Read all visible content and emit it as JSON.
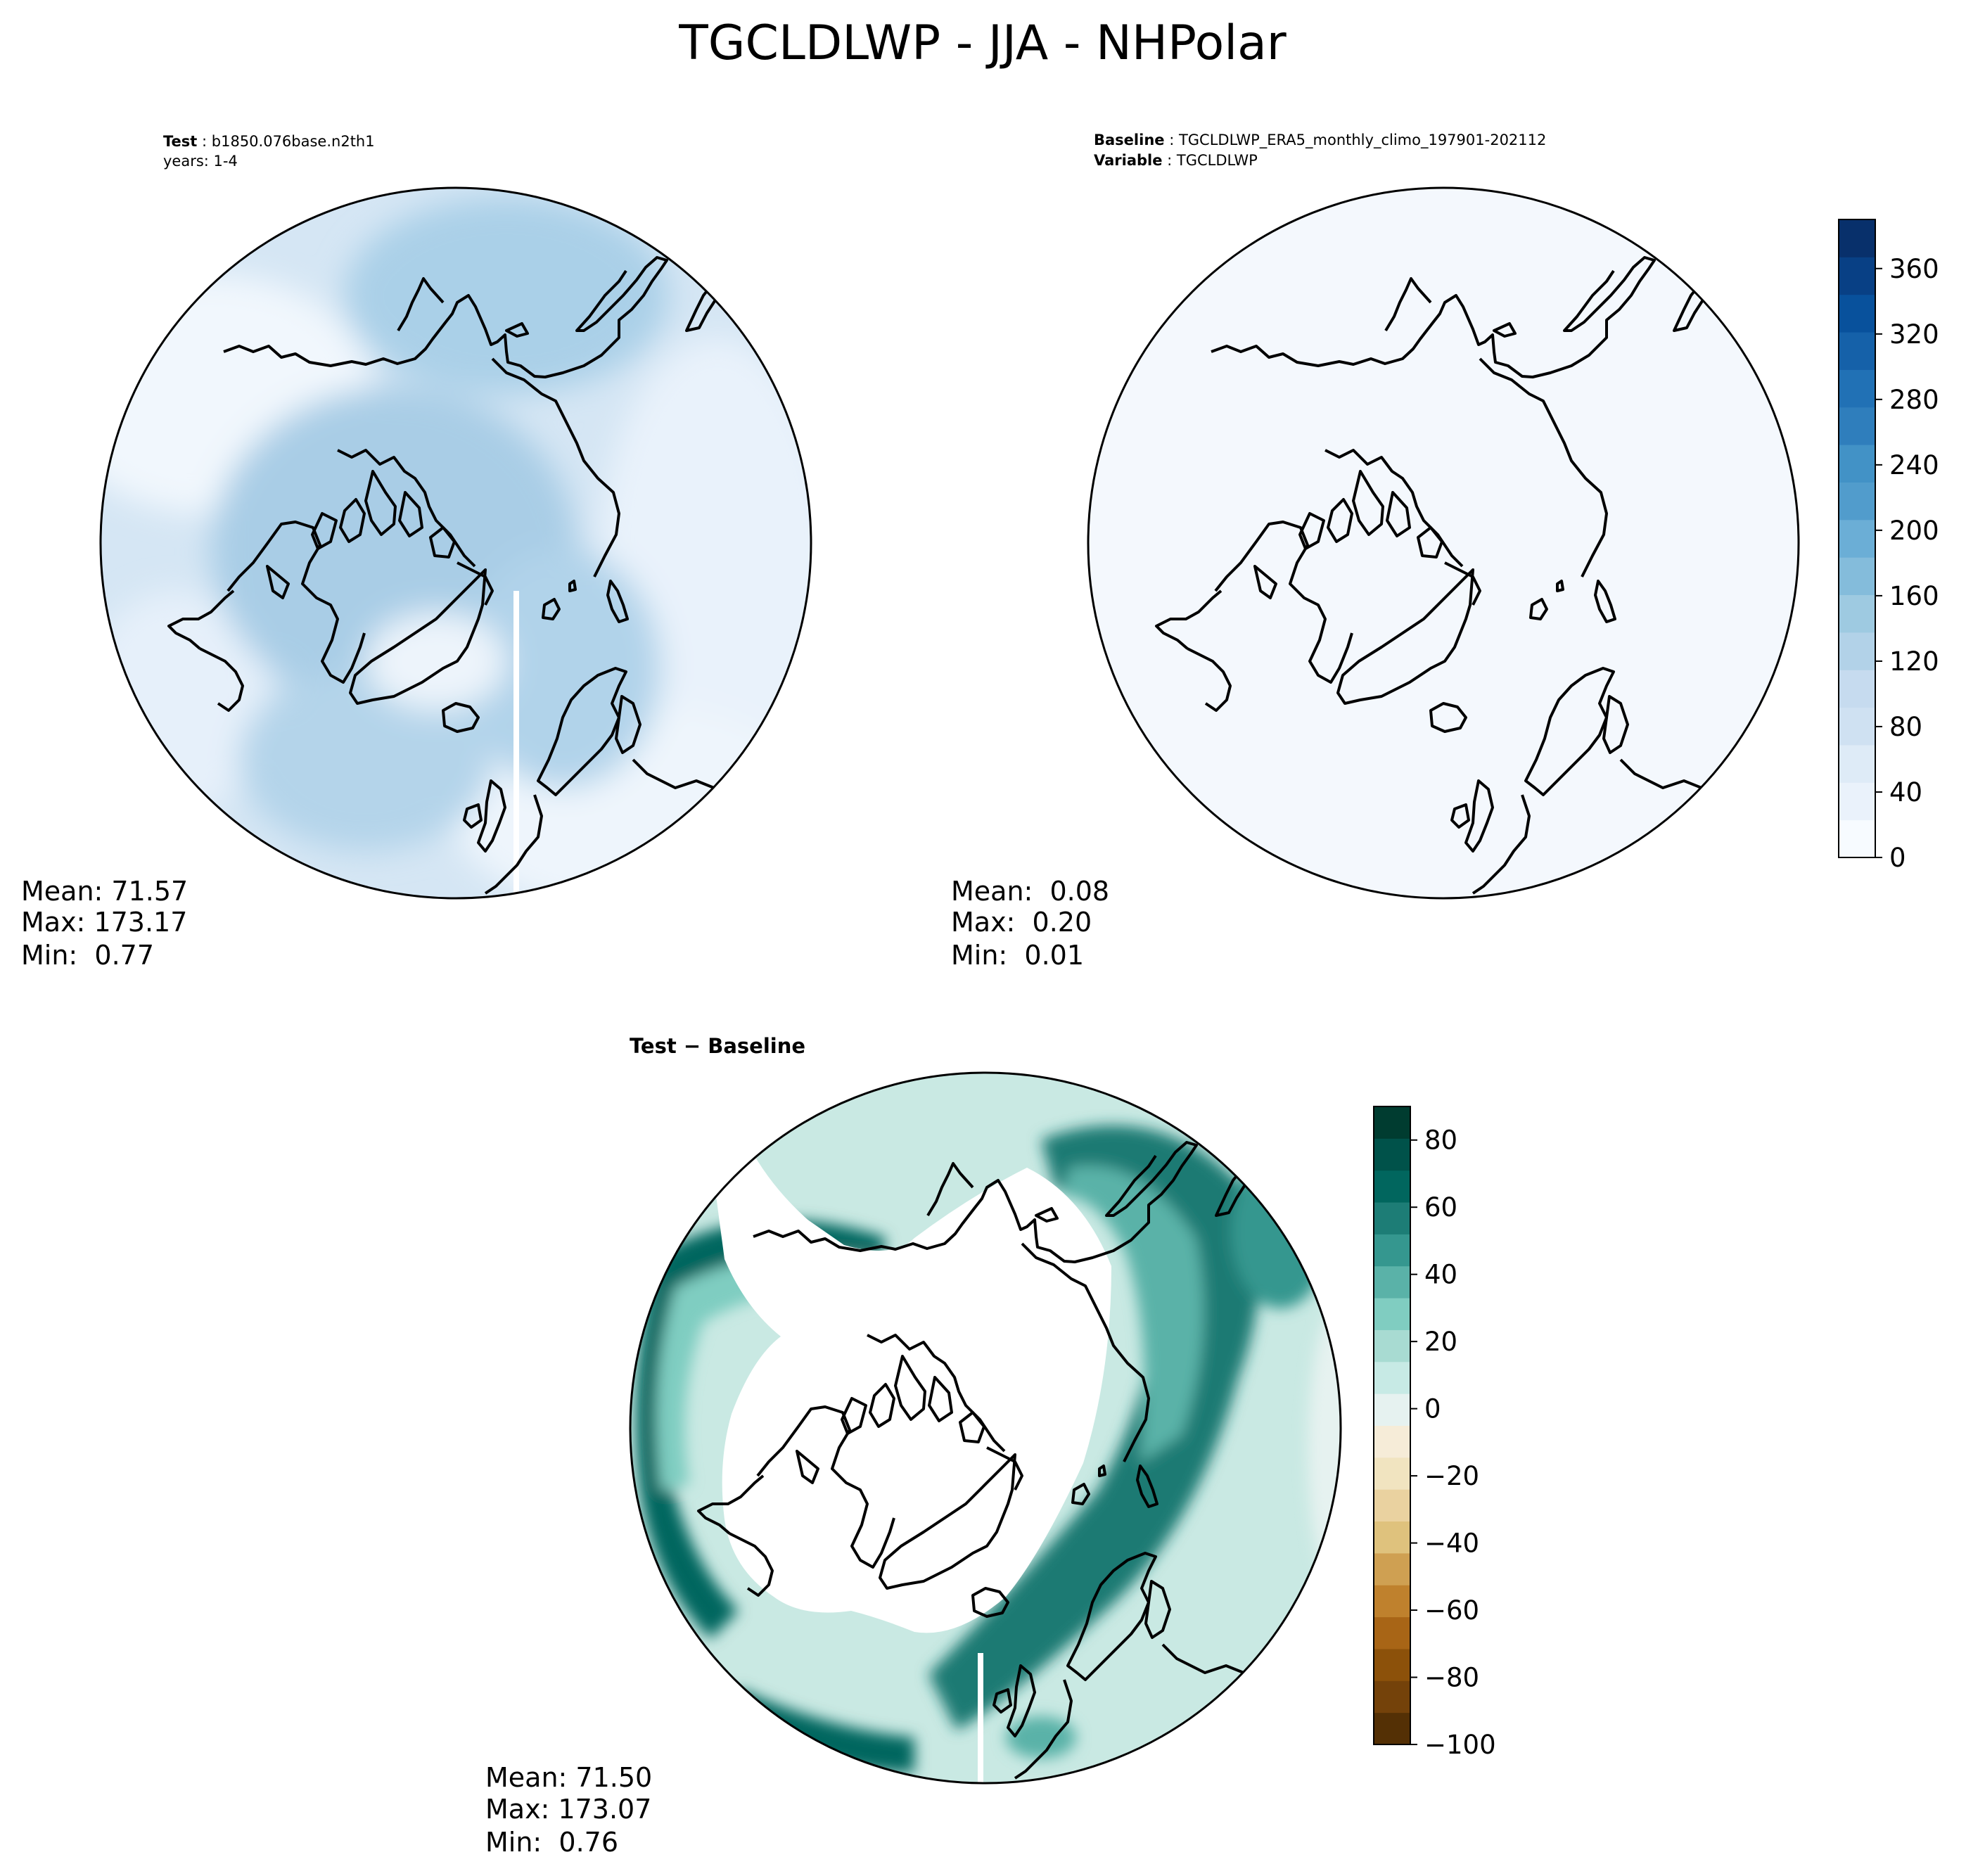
{
  "figure": {
    "title": "TGCLDLWP - JJA - NHPolar"
  },
  "panels": {
    "test": {
      "header": [
        {
          "key": "Test",
          "sep": " : ",
          "value": "b1850.076base.n2th1"
        },
        {
          "key": "",
          "sep": "",
          "value": "years: 1-4"
        }
      ],
      "stats": [
        "Mean: 71.57",
        "Max: 173.17",
        "Min:  0.77"
      ]
    },
    "baseline": {
      "header": [
        {
          "key": "Baseline",
          "sep": " : ",
          "value": "TGCLDLWP_ERA5_monthly_climo_197901-202112"
        },
        {
          "key": "Variable",
          "sep": " : ",
          "value": "TGCLDLWP"
        }
      ],
      "stats": [
        "Mean:  0.08",
        "Max:  0.20",
        "Min:  0.01"
      ]
    },
    "diff": {
      "title": "Test − Baseline",
      "stats": [
        "Mean: 71.50",
        "Max: 173.07",
        "Min:  0.76"
      ]
    }
  },
  "chart_data": [
    {
      "type": "heatmap",
      "projection": "north-polar-stereographic",
      "panel": "test",
      "colormap": "Blues",
      "colorbar": {
        "ticks": [
          0,
          40,
          80,
          120,
          160,
          200,
          240,
          280,
          320,
          360
        ],
        "range": [
          0,
          390
        ]
      },
      "stats": {
        "mean": 71.57,
        "max": 173.17,
        "min": 0.77
      }
    },
    {
      "type": "heatmap",
      "projection": "north-polar-stereographic",
      "panel": "baseline",
      "colormap": "Blues",
      "colorbar": {
        "ticks": [
          0,
          40,
          80,
          120,
          160,
          200,
          240,
          280,
          320,
          360
        ],
        "range": [
          0,
          390
        ]
      },
      "stats": {
        "mean": 0.08,
        "max": 0.2,
        "min": 0.01
      }
    },
    {
      "type": "heatmap",
      "projection": "north-polar-stereographic",
      "panel": "diff",
      "colormap": "BrBG",
      "colorbar": {
        "ticks": [
          -100,
          -80,
          -60,
          -40,
          -20,
          0,
          20,
          40,
          60,
          80
        ],
        "range": [
          -100,
          90
        ]
      },
      "stats": {
        "mean": 71.5,
        "max": 173.07,
        "min": 0.76
      }
    }
  ],
  "colors": {
    "blues": [
      "#f7fbff",
      "#eaf2fb",
      "#deebf7",
      "#cfe1f2",
      "#c6dbef",
      "#b2d2e8",
      "#9ecae1",
      "#84bcdb",
      "#6baed6",
      "#519ccc",
      "#4292c6",
      "#2f7ebc",
      "#2171b5",
      "#1561a9",
      "#08519c",
      "#084085",
      "#08306b"
    ],
    "brbg": [
      "#543005",
      "#74420a",
      "#8c510a",
      "#a86516",
      "#bf812d",
      "#cfa052",
      "#dfc27d",
      "#ead2a0",
      "#f1e4c0",
      "#f6ecd8",
      "#e6f2f0",
      "#c7eae5",
      "#a8dbd2",
      "#80cdc1",
      "#5ab2a8",
      "#35978f",
      "#1d7d76",
      "#01665e",
      "#00524a",
      "#003c30"
    ],
    "coast": "#000000"
  }
}
